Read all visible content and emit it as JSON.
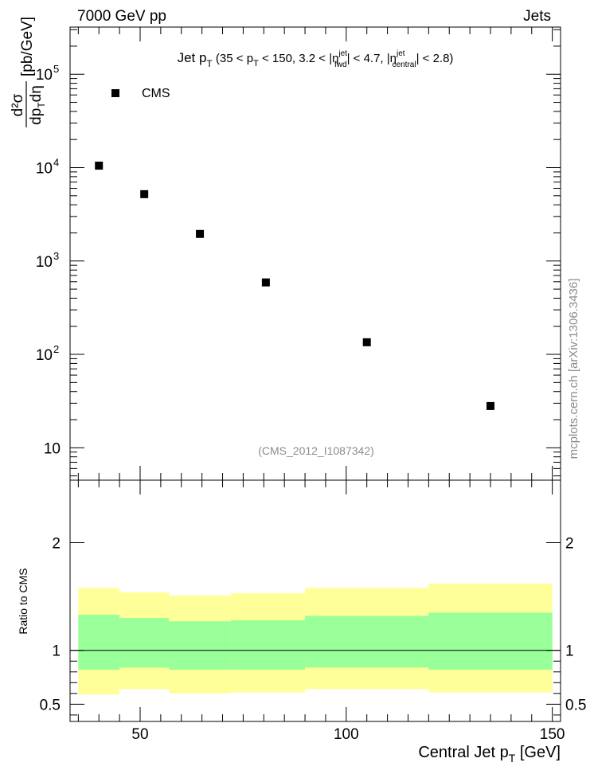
{
  "header": {
    "left_label": "7000 GeV pp",
    "right_label": "Jets"
  },
  "side_label": "mcplots.cern.ch [arXiv:1306.3436]",
  "chart_data": [
    {
      "type": "scatter",
      "title_parts": [
        "Jet p",
        "T",
        " (35 < p",
        "T",
        " < 150, 3.2 < |η",
        "jet",
        "fwd",
        "| < 4.7, |η",
        "jet",
        "central",
        "| < 2.8)"
      ],
      "ylabel_parts": [
        "d²σ",
        "dp",
        "T",
        "dη",
        "[pb/GeV]"
      ],
      "yscale": "log",
      "xlim": [
        33,
        152
      ],
      "ylim": [
        4.5,
        320000
      ],
      "yticks_major": [
        10,
        100,
        1000,
        10000,
        100000
      ],
      "ytick_labels": [
        {
          "base": "10",
          "exp": ""
        },
        {
          "base": "10",
          "exp": "2"
        },
        {
          "base": "10",
          "exp": "3"
        },
        {
          "base": "10",
          "exp": "4"
        },
        {
          "base": "10",
          "exp": "5"
        }
      ],
      "legend": {
        "placement": "top-left",
        "entries": [
          "CMS"
        ]
      },
      "annotation": "(CMS_2012_I1087342)",
      "series": [
        {
          "name": "CMS",
          "marker": "square",
          "color": "#000000",
          "x": [
            40,
            51,
            64.5,
            80.5,
            105,
            135
          ],
          "y": [
            10500,
            5200,
            1950,
            590,
            135,
            28
          ]
        }
      ]
    },
    {
      "type": "area",
      "ylabel": "Ratio to CMS",
      "xlabel_parts": [
        "Central Jet p",
        "T",
        " [GeV]"
      ],
      "xlim": [
        33,
        152
      ],
      "ylim": [
        0.34,
        2.58
      ],
      "yticks_major": [
        0.5,
        1,
        2
      ],
      "ytick_labels": [
        "0.5",
        "1",
        "2"
      ],
      "xticks_major": [
        50,
        100,
        150
      ],
      "xtick_labels": [
        "50",
        "100",
        "150"
      ],
      "reference_line": 1,
      "bands": {
        "edges": [
          35,
          45,
          57,
          72,
          90,
          120,
          150
        ],
        "outer_color": "#ffff99",
        "inner_color": "#99ff99",
        "outer_low": [
          0.59,
          0.64,
          0.6,
          0.61,
          0.64,
          0.61
        ],
        "outer_high": [
          1.58,
          1.54,
          1.51,
          1.53,
          1.58,
          1.62
        ],
        "inner_low": [
          0.82,
          0.84,
          0.82,
          0.82,
          0.84,
          0.82
        ],
        "inner_high": [
          1.33,
          1.3,
          1.27,
          1.28,
          1.32,
          1.35
        ]
      }
    }
  ]
}
